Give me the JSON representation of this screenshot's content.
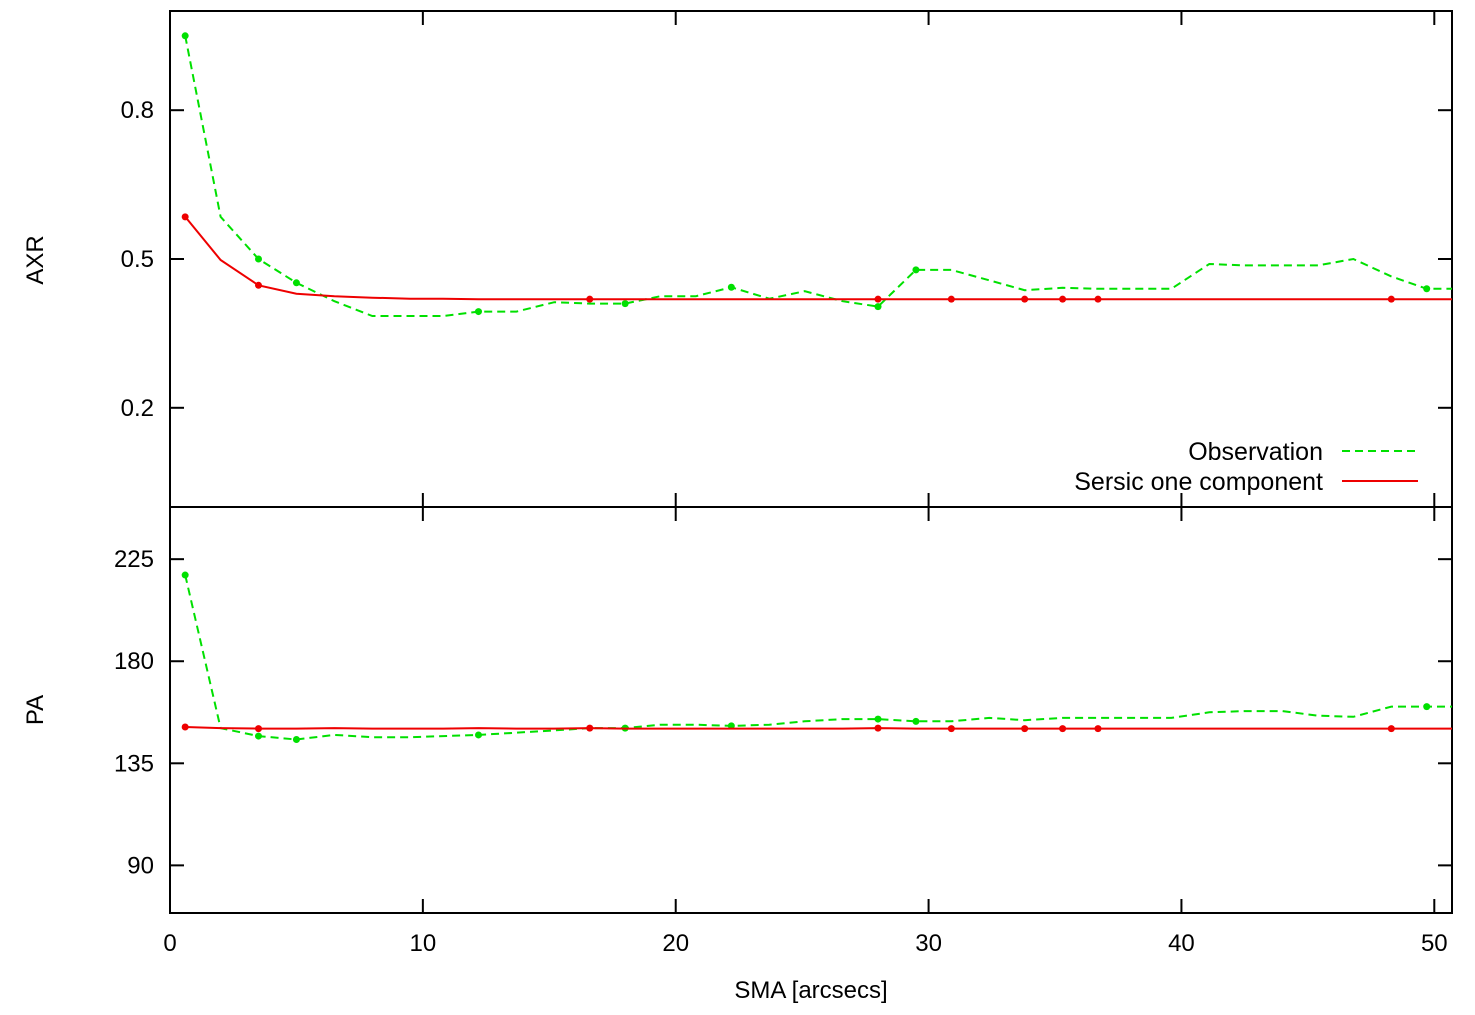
{
  "chart_data": [
    {
      "type": "line",
      "panel": "top",
      "ylabel": "AXR",
      "xlabel": "",
      "xlim": [
        0,
        50.7
      ],
      "ylim": [
        0.0,
        1.0
      ],
      "yticks": [
        0.2,
        0.5,
        0.8
      ],
      "ytick_labels": [
        "0.2",
        "0.5",
        "0.8"
      ],
      "xticks": [
        0,
        10,
        20,
        30,
        40,
        50
      ],
      "legend_placement": "bottom-right",
      "series": [
        {
          "name": "Observation",
          "color": "#00e000",
          "style": "dashed",
          "x": [
            0.6,
            2.0,
            3.5,
            5.0,
            6.5,
            8.0,
            9.5,
            10.8,
            12.2,
            13.7,
            15.2,
            16.6,
            18.0,
            19.4,
            20.8,
            22.2,
            23.7,
            25.1,
            26.6,
            28.0,
            29.5,
            30.9,
            32.4,
            33.8,
            35.3,
            36.7,
            38.2,
            39.6,
            41.1,
            42.5,
            44.0,
            45.4,
            46.8,
            48.3,
            49.7,
            50.7
          ],
          "y": [
            0.95,
            0.585,
            0.5,
            0.452,
            0.415,
            0.385,
            0.385,
            0.385,
            0.394,
            0.394,
            0.413,
            0.41,
            0.41,
            0.425,
            0.425,
            0.443,
            0.42,
            0.435,
            0.415,
            0.404,
            0.478,
            0.478,
            0.457,
            0.437,
            0.442,
            0.44,
            0.44,
            0.44,
            0.49,
            0.487,
            0.487,
            0.487,
            0.5,
            0.465,
            0.44,
            0.44
          ]
        },
        {
          "name": "Sersic one component",
          "color": "#ee0000",
          "style": "solid",
          "x": [
            0.6,
            2.0,
            3.5,
            5.0,
            6.5,
            8.0,
            9.5,
            10.8,
            12.2,
            13.7,
            15.2,
            16.6,
            18.0,
            19.4,
            20.8,
            22.2,
            23.7,
            25.1,
            26.6,
            28.0,
            29.5,
            30.9,
            32.4,
            33.8,
            35.3,
            36.7,
            38.2,
            39.6,
            41.1,
            42.5,
            44.0,
            45.4,
            46.8,
            48.3,
            49.7,
            50.7
          ],
          "y": [
            0.585,
            0.498,
            0.447,
            0.43,
            0.425,
            0.422,
            0.42,
            0.42,
            0.419,
            0.419,
            0.419,
            0.419,
            0.419,
            0.419,
            0.419,
            0.419,
            0.419,
            0.419,
            0.419,
            0.419,
            0.419,
            0.419,
            0.419,
            0.419,
            0.419,
            0.419,
            0.419,
            0.419,
            0.419,
            0.419,
            0.419,
            0.419,
            0.419,
            0.419,
            0.419,
            0.419
          ]
        }
      ]
    },
    {
      "type": "line",
      "panel": "bottom",
      "ylabel": "PA",
      "xlabel": "SMA [arcsecs]",
      "xlim": [
        0,
        50.7
      ],
      "ylim": [
        69,
        248
      ],
      "yticks": [
        90,
        135,
        180,
        225
      ],
      "ytick_labels": [
        "90",
        "135",
        "180",
        "225"
      ],
      "xticks": [
        0,
        10,
        20,
        30,
        40,
        50
      ],
      "xtick_labels": [
        "0",
        "10",
        "20",
        "30",
        "40",
        "50"
      ],
      "series": [
        {
          "name": "Observation",
          "color": "#00e000",
          "style": "dashed",
          "x": [
            0.6,
            2.0,
            3.5,
            5.0,
            6.5,
            8.0,
            9.5,
            10.8,
            12.2,
            13.7,
            15.2,
            16.6,
            18.0,
            19.4,
            20.8,
            22.2,
            23.7,
            25.1,
            26.6,
            28.0,
            29.5,
            30.9,
            32.4,
            33.8,
            35.3,
            36.7,
            38.2,
            39.6,
            41.1,
            42.5,
            44.0,
            45.4,
            46.8,
            48.3,
            49.7,
            50.7
          ],
          "y": [
            218,
            150.5,
            147,
            145.5,
            147.5,
            146.5,
            146.5,
            147,
            147.5,
            148.5,
            149.5,
            150.5,
            150.5,
            152,
            152,
            151.5,
            152,
            153.5,
            154.5,
            154.5,
            153.5,
            153.5,
            155,
            154,
            155,
            155,
            155,
            155,
            157.5,
            158,
            158,
            156,
            155.5,
            160,
            160,
            160
          ]
        },
        {
          "name": "Sersic one component",
          "color": "#ee0000",
          "style": "solid",
          "x": [
            0.6,
            2.0,
            3.5,
            5.0,
            6.5,
            8.0,
            9.5,
            10.8,
            12.2,
            13.7,
            15.2,
            16.6,
            18.0,
            19.4,
            20.8,
            22.2,
            23.7,
            25.1,
            26.6,
            28.0,
            29.5,
            30.9,
            32.4,
            33.8,
            35.3,
            36.7,
            38.2,
            39.6,
            41.1,
            42.5,
            44.0,
            45.4,
            46.8,
            48.3,
            49.7,
            50.7
          ],
          "y": [
            151,
            150.5,
            150.3,
            150.3,
            150.5,
            150.3,
            150.3,
            150.3,
            150.5,
            150.3,
            150.3,
            150.5,
            150.3,
            150.3,
            150.3,
            150.3,
            150.3,
            150.3,
            150.3,
            150.5,
            150.3,
            150.3,
            150.3,
            150.3,
            150.3,
            150.3,
            150.3,
            150.3,
            150.3,
            150.3,
            150.3,
            150.3,
            150.3,
            150.3,
            150.3,
            150.3
          ]
        }
      ]
    }
  ],
  "legend": {
    "entries": [
      {
        "label": "Observation",
        "color": "#00e000",
        "style": "dashed"
      },
      {
        "label": "Sersic one component",
        "color": "#ee0000",
        "style": "solid"
      }
    ]
  },
  "markers": {
    "observation_top_x": [
      0.6,
      3.5,
      5.0,
      12.2,
      18.0,
      22.2,
      28.0,
      29.5,
      49.7
    ],
    "sersic_top_x": [
      0.6,
      3.5,
      16.6,
      28.0,
      30.9,
      33.8,
      35.3,
      36.7,
      48.3
    ],
    "observation_bottom_x": [
      0.6,
      3.5,
      5.0,
      12.2,
      18.0,
      22.2,
      28.0,
      29.5,
      49.7
    ],
    "sersic_bottom_x": [
      0.6,
      3.5,
      16.6,
      28.0,
      30.9,
      33.8,
      35.3,
      36.7,
      48.3
    ]
  }
}
